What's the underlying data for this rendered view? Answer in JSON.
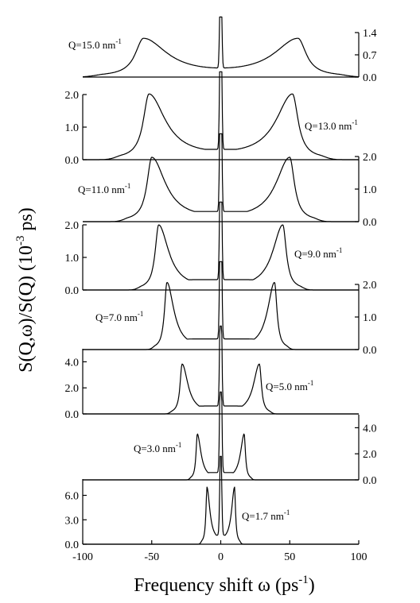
{
  "chart_data": {
    "type": "line",
    "layout": "stacked panels",
    "xlabel": "Frequency shift ω (ps-1)",
    "xlabel_parts": {
      "main": "Frequency shift ω (ps",
      "sup": "-1",
      "close": ")"
    },
    "ylabel": "S(Q,ω)/S(Q) (10-3 ps)",
    "ylabel_parts": {
      "main": "S(Q,ω)/S(Q)   (10",
      "sup": "-3",
      "close": " ps)"
    },
    "xlim": [
      -100,
      100
    ],
    "x_ticks": [
      -100,
      -50,
      0,
      50,
      100
    ],
    "x_tick_labels": [
      "-100",
      "-50",
      "0",
      "50",
      "100"
    ],
    "panels": [
      {
        "q_label": "Q=15.0 nm",
        "q_sup": "-1",
        "y_axis_side": "right",
        "ylim": [
          0,
          1.4
        ],
        "y_ticks": [
          0,
          0.7,
          1.4
        ],
        "y_tick_labels": [
          "0.0",
          "0.7",
          "1.4"
        ],
        "side_peak_x": 56,
        "side_peak_height": 1.18,
        "side_peak_width": 13,
        "central_peak_height": 4.0
      },
      {
        "q_label": "Q=13.0 nm",
        "q_sup": "-1",
        "y_axis_side": "left",
        "ylim": [
          0,
          2.0
        ],
        "y_ticks": [
          0,
          1.0,
          2.0
        ],
        "y_tick_labels": [
          "0.0",
          "1.0",
          "2.0"
        ],
        "side_peak_x": 52,
        "side_peak_height": 1.98,
        "side_peak_width": 9,
        "central_peak_height": 6.0
      },
      {
        "q_label": "Q=11.0 nm",
        "q_sup": "-1",
        "y_axis_side": "right",
        "ylim": [
          0,
          2.0
        ],
        "y_ticks": [
          0,
          1.0,
          2.0
        ],
        "y_tick_labels": [
          "0.0",
          "1.0",
          "2.0"
        ],
        "side_peak_x": 50,
        "side_peak_height": 1.95,
        "side_peak_width": 7.5,
        "central_peak_height": 6.0
      },
      {
        "q_label": "Q=9.0 nm",
        "q_sup": "-1",
        "y_axis_side": "left",
        "ylim": [
          0,
          2.0
        ],
        "y_ticks": [
          0,
          1.0,
          2.0
        ],
        "y_tick_labels": [
          "0.0",
          "1.0",
          "2.0"
        ],
        "side_peak_x": 45,
        "side_peak_height": 1.98,
        "side_peak_width": 5.5,
        "central_peak_height": 6.0
      },
      {
        "q_label": "Q=7.0 nm",
        "q_sup": "-1",
        "y_axis_side": "right",
        "ylim": [
          0,
          2.0
        ],
        "y_ticks": [
          0,
          1.0,
          2.0
        ],
        "y_tick_labels": [
          "0.0",
          "1.0",
          "2.0"
        ],
        "side_peak_x": 39,
        "side_peak_height": 2.05,
        "side_peak_width": 3.8,
        "central_peak_height": 6.0
      },
      {
        "q_label": "Q=5.0 nm",
        "q_sup": "-1",
        "y_axis_side": "left",
        "ylim": [
          0,
          5.0
        ],
        "y_ticks": [
          0,
          2.0,
          4.0
        ],
        "y_tick_labels": [
          "0.0",
          "2.0",
          "4.0"
        ],
        "side_peak_x": 28,
        "side_peak_height": 3.8,
        "side_peak_width": 3.2,
        "central_peak_height": 12.0
      },
      {
        "q_label": "Q=3.0 nm",
        "q_sup": "-1",
        "y_axis_side": "right",
        "ylim": [
          0,
          5.0
        ],
        "y_ticks": [
          0,
          2.0,
          4.0
        ],
        "y_tick_labels": [
          "0.0",
          "2.0",
          "4.0"
        ],
        "side_peak_x": 17,
        "side_peak_height": 3.5,
        "side_peak_width": 2.0,
        "central_peak_height": 12.0
      },
      {
        "q_label": "Q=1.7 nm",
        "q_sup": "-1",
        "y_axis_side": "left",
        "ylim": [
          0,
          8.0
        ],
        "y_ticks": [
          0,
          3.0,
          6.0
        ],
        "y_tick_labels": [
          "0.0",
          "3.0",
          "6.0"
        ],
        "side_peak_x": 10,
        "side_peak_height": 6.9,
        "side_peak_width": 1.6,
        "central_peak_height": 12.0
      }
    ]
  }
}
